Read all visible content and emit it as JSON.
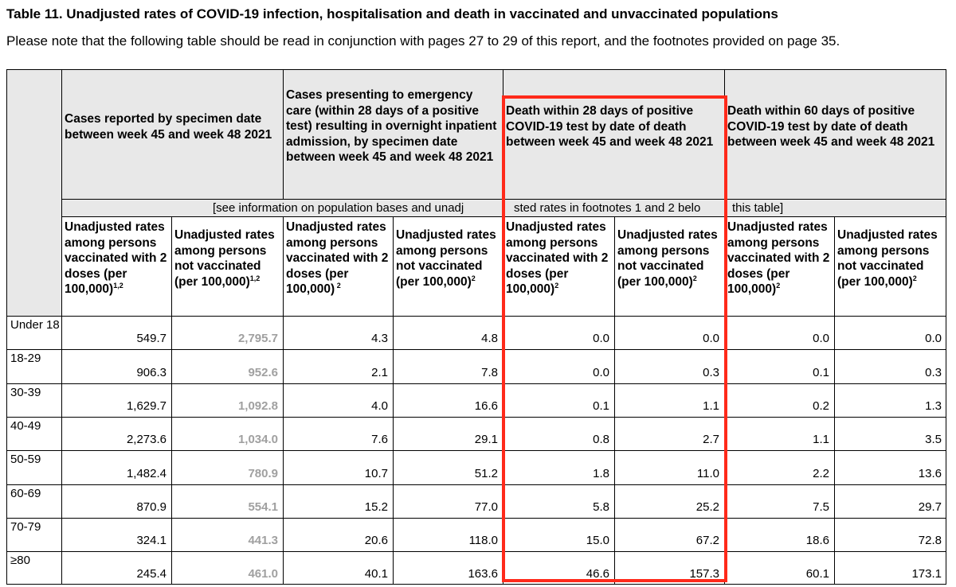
{
  "title": "Table 11. Unadjusted rates of COVID-19 infection, hospitalisation and death in vaccinated and unvaccinated populations",
  "note": "Please note that the following table should be read in conjunction with pages 27 to 29 of this report, and the footnotes provided on page 35.",
  "groups": [
    "Cases reported by specimen date between week 45 and week 48 2021",
    "Cases presenting to emergency care (within 28 days of a positive test) resulting in overnight inpatient admission, by specimen date between week 45 and week 48 2021",
    "Death within 28 days of positive COVID-19 test by date of death between week 45 and week 48 2021",
    "Death within 60 days of positive COVID-19 test by date of death between week 45 and week 48 2021"
  ],
  "bases_note_left": "[see information on population bases and unadj",
  "bases_note_mid": "sted rates in footnotes 1 and 2 belo",
  "bases_note_right": "this table]",
  "subheaders": [
    {
      "text": "Unadjusted rates among persons vaccinated with 2 doses (per 100,000)",
      "sup": "1,2"
    },
    {
      "text": "Unadjusted rates among persons not vaccinated (per 100,000)",
      "sup": "1,2"
    },
    {
      "text": "Unadjusted rates among persons vaccinated with 2 doses (per 100,000)",
      "sup": " 2"
    },
    {
      "text": "Unadjusted rates among persons not vaccinated (per 100,000)",
      "sup": "2"
    },
    {
      "text": "Unadjusted rates among persons vaccinated with 2 doses (per 100,000)",
      "sup": "2"
    },
    {
      "text": "Unadjusted rates among persons not vaccinated (per 100,000)",
      "sup": "2"
    },
    {
      "text": "Unadjusted rates among persons vaccinated with 2 doses (per 100,000)",
      "sup": "2"
    },
    {
      "text": "Unadjusted rates among persons not vaccinated (per 100,000)",
      "sup": "2"
    }
  ],
  "rows": [
    {
      "age": "Under 18",
      "values": [
        "549.7",
        "2,795.7",
        "4.3",
        "4.8",
        "0.0",
        "0.0",
        "0.0",
        "0.0"
      ]
    },
    {
      "age": "18-29",
      "values": [
        "906.3",
        "952.6",
        "2.1",
        "7.8",
        "0.0",
        "0.3",
        "0.1",
        "0.3"
      ]
    },
    {
      "age": "30-39",
      "values": [
        "1,629.7",
        "1,092.8",
        "4.0",
        "16.6",
        "0.1",
        "1.1",
        "0.2",
        "1.3"
      ]
    },
    {
      "age": "40-49",
      "values": [
        "2,273.6",
        "1,034.0",
        "7.6",
        "29.1",
        "0.8",
        "2.7",
        "1.1",
        "3.5"
      ]
    },
    {
      "age": "50-59",
      "values": [
        "1,482.4",
        "780.9",
        "10.7",
        "51.2",
        "1.8",
        "11.0",
        "2.2",
        "13.6"
      ]
    },
    {
      "age": "60-69",
      "values": [
        "870.9",
        "554.1",
        "15.2",
        "77.0",
        "5.8",
        "25.2",
        "7.5",
        "29.7"
      ]
    },
    {
      "age": "70-79",
      "values": [
        "324.1",
        "441.3",
        "20.6",
        "118.0",
        "15.0",
        "67.2",
        "18.6",
        "72.8"
      ]
    },
    {
      "age": "≥80",
      "values": [
        "245.4",
        "461.0",
        "40.1",
        "163.6",
        "46.6",
        "157.3",
        "60.1",
        "173.1"
      ]
    }
  ],
  "colors": {
    "highlight": "#ff2a1a",
    "faded_text": "#a0a0a0",
    "header_bg": "#e8e8e8"
  }
}
